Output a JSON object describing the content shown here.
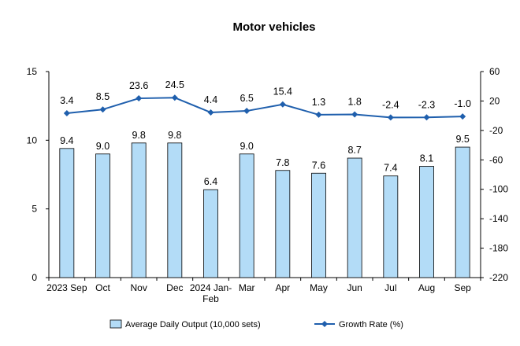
{
  "chart_data": {
    "type": "bar",
    "title": "Motor vehicles",
    "categories": [
      "2023 Sep",
      "Oct",
      "Nov",
      "Dec",
      "2024 Jan-Feb",
      "Mar",
      "Apr",
      "May",
      "Jun",
      "Jul",
      "Aug",
      "Sep"
    ],
    "series": [
      {
        "name": "Average Daily Output (10,000 sets)",
        "type": "bar",
        "axis": "left",
        "values": [
          9.4,
          9.0,
          9.8,
          9.8,
          6.4,
          9.0,
          7.8,
          7.6,
          8.7,
          7.4,
          8.1,
          9.5
        ],
        "labels": [
          "9.4",
          "9.0",
          "9.8",
          "9.8",
          "6.4",
          "9.0",
          "7.8",
          "7.6",
          "8.7",
          "7.4",
          "8.1",
          "9.5"
        ],
        "color": "#b3dcf7",
        "stroke": "#000000"
      },
      {
        "name": "Growth Rate (%)",
        "type": "line",
        "axis": "right",
        "values": [
          3.4,
          8.5,
          23.6,
          24.5,
          4.4,
          6.5,
          15.4,
          1.3,
          1.8,
          -2.4,
          -2.3,
          -1.0
        ],
        "labels": [
          "3.4",
          "8.5",
          "23.6",
          "24.5",
          "4.4",
          "6.5",
          "15.4",
          "1.3",
          "1.8",
          "-2.4",
          "-2.3",
          "-1.0"
        ],
        "color": "#1f5fad"
      }
    ],
    "left_axis": {
      "min": 0,
      "max": 15,
      "ticks": [
        0,
        5,
        10,
        15
      ]
    },
    "right_axis": {
      "min": -220,
      "max": 60,
      "ticks": [
        60,
        20,
        -20,
        -60,
        -100,
        -140,
        -180,
        -220
      ]
    },
    "grid": false,
    "legend_position": "bottom"
  }
}
